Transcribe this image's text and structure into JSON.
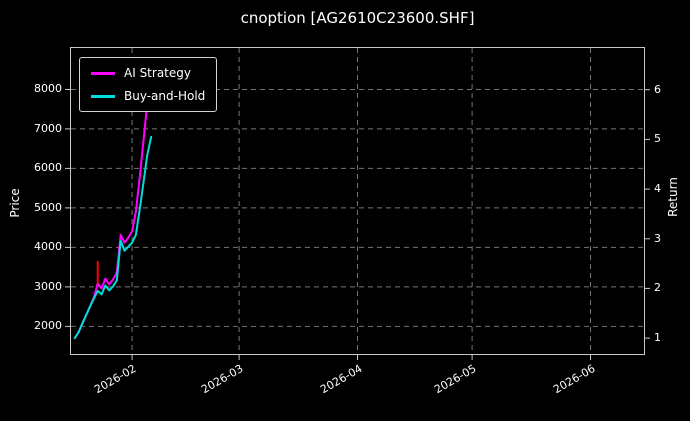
{
  "chart_data": {
    "type": "line",
    "title": "cnoption [AG2610C23600.SHF]",
    "background_color": "#000000",
    "text_color": "#ffffff",
    "grid": true,
    "grid_style": "dashed",
    "legend_position": "upper left",
    "ylabel_left": "Price",
    "ylabel_right": "Return",
    "x_axis": {
      "range": [
        "2026-01-16",
        "2026-06-15"
      ],
      "ticks": [
        {
          "date": "2026-02-01",
          "label": "2026-02"
        },
        {
          "date": "2026-03-01",
          "label": "2026-03"
        },
        {
          "date": "2026-04-01",
          "label": "2026-04"
        },
        {
          "date": "2026-05-01",
          "label": "2026-05"
        },
        {
          "date": "2026-06-01",
          "label": "2026-06"
        }
      ]
    },
    "left_axis": {
      "lim": [
        1300,
        9050
      ],
      "ticks": [
        2000,
        3000,
        4000,
        5000,
        6000,
        7000,
        8000
      ]
    },
    "right_axis": {
      "lim": [
        0.68,
        6.84
      ],
      "ticks": [
        1,
        2,
        3,
        4,
        5,
        6
      ]
    },
    "series": [
      {
        "name": "AI Strategy",
        "color": "#ff00ff",
        "axis": "right",
        "points": [
          [
            "2026-01-17",
            1.0
          ],
          [
            "2026-01-18",
            1.12
          ],
          [
            "2026-01-19",
            1.3
          ],
          [
            "2026-01-20",
            1.47
          ],
          [
            "2026-01-21",
            1.64
          ],
          [
            "2026-01-22",
            1.82
          ],
          [
            "2026-01-23",
            2.1
          ],
          [
            "2026-01-24",
            2.0
          ],
          [
            "2026-01-25",
            2.2
          ],
          [
            "2026-01-26",
            2.08
          ],
          [
            "2026-01-27",
            2.18
          ],
          [
            "2026-01-28",
            2.32
          ],
          [
            "2026-01-29",
            3.08
          ],
          [
            "2026-01-30",
            2.92
          ],
          [
            "2026-01-31",
            3.02
          ],
          [
            "2026-02-01",
            3.15
          ],
          [
            "2026-02-02",
            3.55
          ],
          [
            "2026-02-03",
            4.25
          ],
          [
            "2026-02-04",
            5.0
          ],
          [
            "2026-02-05",
            5.75
          ],
          [
            "2026-02-06",
            6.3
          ]
        ]
      },
      {
        "name": "Buy-and-Hold",
        "color": "#00dddd",
        "axis": "right",
        "points": [
          [
            "2026-01-17",
            1.0
          ],
          [
            "2026-01-18",
            1.12
          ],
          [
            "2026-01-19",
            1.3
          ],
          [
            "2026-01-20",
            1.47
          ],
          [
            "2026-01-21",
            1.64
          ],
          [
            "2026-01-22",
            1.8
          ],
          [
            "2026-01-23",
            1.95
          ],
          [
            "2026-01-24",
            1.88
          ],
          [
            "2026-01-25",
            2.06
          ],
          [
            "2026-01-26",
            1.96
          ],
          [
            "2026-01-27",
            2.04
          ],
          [
            "2026-01-28",
            2.16
          ],
          [
            "2026-01-29",
            2.96
          ],
          [
            "2026-01-30",
            2.76
          ],
          [
            "2026-01-31",
            2.84
          ],
          [
            "2026-02-01",
            2.92
          ],
          [
            "2026-02-02",
            3.08
          ],
          [
            "2026-02-03",
            3.6
          ],
          [
            "2026-02-04",
            4.15
          ],
          [
            "2026-02-05",
            4.7
          ],
          [
            "2026-02-06",
            5.05
          ]
        ]
      }
    ],
    "markers": [
      {
        "name": "signal-marker",
        "color": "#ff0000",
        "date": "2026-01-23",
        "from": 2.1,
        "to": 2.55
      }
    ]
  }
}
